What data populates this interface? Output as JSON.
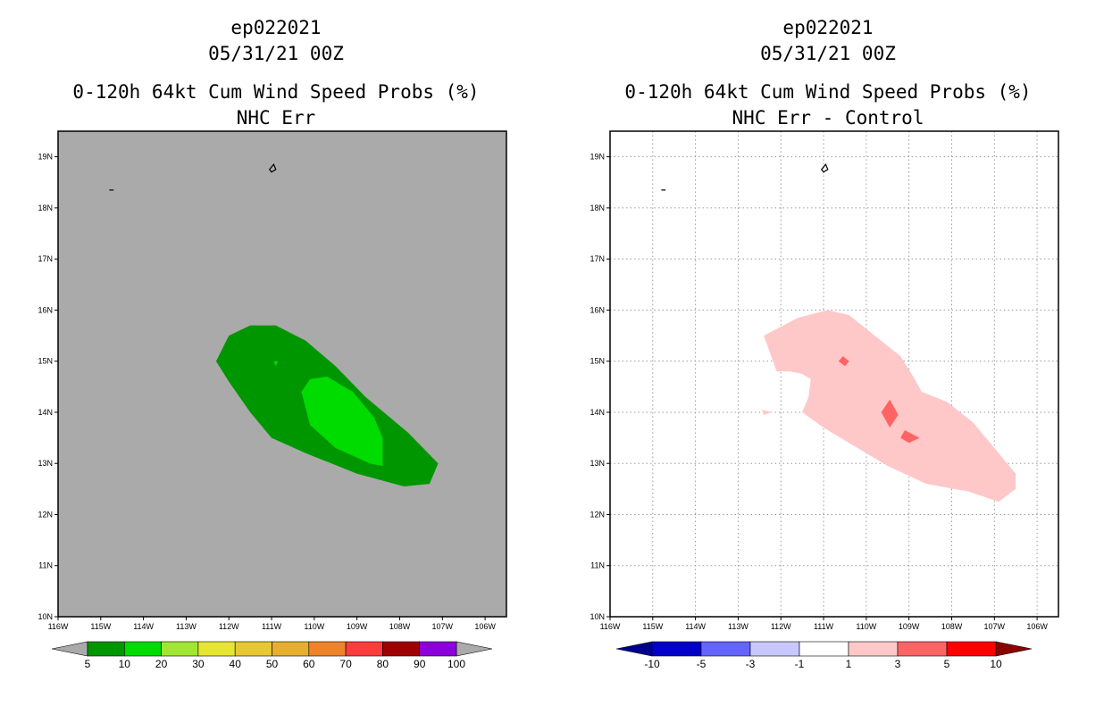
{
  "colors": {
    "background": "#ffffff",
    "left_map_bg": "#aaaaaa",
    "frame": "#000000",
    "grid": "#9a9a9a"
  },
  "chart_data": [
    {
      "type": "contour-map",
      "title_lines": [
        "ep022021",
        "05/31/21 00Z",
        "0-120h 64kt Cum Wind Speed Probs (%)",
        "NHC Err"
      ],
      "lon_range": [
        -116,
        -105.5
      ],
      "lat_range": [
        10,
        19.5
      ],
      "xtick_labels": [
        "116W",
        "115W",
        "114W",
        "113W",
        "112W",
        "111W",
        "110W",
        "109W",
        "108W",
        "107W",
        "106W"
      ],
      "xtick_values": [
        -116,
        -115,
        -114,
        -113,
        -112,
        -111,
        -110,
        -109,
        -108,
        -107,
        -106
      ],
      "ytick_labels": [
        "10N",
        "11N",
        "12N",
        "13N",
        "14N",
        "15N",
        "16N",
        "17N",
        "18N",
        "19N"
      ],
      "ytick_values": [
        10,
        11,
        12,
        13,
        14,
        15,
        16,
        17,
        18,
        19
      ],
      "grid": false,
      "colorbar": {
        "ticks": [
          "5",
          "10",
          "20",
          "30",
          "40",
          "50",
          "60",
          "70",
          "80",
          "90",
          "100"
        ],
        "colors": [
          "#009600",
          "#00dc00",
          "#a0e632",
          "#e6e632",
          "#e6c832",
          "#e6af2d",
          "#f08228",
          "#fa3c3c",
          "#a00000",
          "#8c00dc"
        ],
        "end_low": "#aaaaaa",
        "end_high": "#aaaaaa"
      },
      "contours": [
        {
          "level": "5-10",
          "color": "#009600",
          "points": [
            [
              -112.3,
              15.0
            ],
            [
              -112.0,
              15.5
            ],
            [
              -111.5,
              15.7
            ],
            [
              -110.9,
              15.7
            ],
            [
              -110.2,
              15.4
            ],
            [
              -109.5,
              14.9
            ],
            [
              -108.8,
              14.3
            ],
            [
              -107.8,
              13.6
            ],
            [
              -107.1,
              13.0
            ],
            [
              -107.3,
              12.6
            ],
            [
              -107.9,
              12.55
            ],
            [
              -109.0,
              12.8
            ],
            [
              -110.2,
              13.2
            ],
            [
              -111.0,
              13.5
            ],
            [
              -111.5,
              14.0
            ],
            [
              -112.0,
              14.6
            ]
          ]
        },
        {
          "level": "10-20",
          "color": "#00dc00",
          "points": [
            [
              -109.7,
              14.7
            ],
            [
              -109.1,
              14.4
            ],
            [
              -108.6,
              13.9
            ],
            [
              -108.4,
              13.5
            ],
            [
              -108.4,
              12.95
            ],
            [
              -108.7,
              13.0
            ],
            [
              -109.5,
              13.3
            ],
            [
              -110.1,
              13.75
            ],
            [
              -110.3,
              14.4
            ],
            [
              -110.1,
              14.65
            ]
          ]
        },
        {
          "level": "10-20 spot",
          "color": "#00dc00",
          "points": [
            [
              -110.95,
              15.0
            ],
            [
              -110.85,
              15.0
            ],
            [
              -110.9,
              14.9
            ]
          ]
        }
      ],
      "land_features": [
        {
          "name": "Clarion islet",
          "points": [
            [
              -114.8,
              18.35
            ],
            [
              -114.7,
              18.35
            ]
          ]
        },
        {
          "name": "Socorro island",
          "points": [
            [
              -111.05,
              18.75
            ],
            [
              -110.95,
              18.85
            ],
            [
              -110.9,
              18.75
            ],
            [
              -111.0,
              18.7
            ]
          ]
        }
      ]
    },
    {
      "type": "contour-map",
      "title_lines": [
        "ep022021",
        "05/31/21 00Z",
        "0-120h 64kt Cum Wind Speed Probs (%)",
        "NHC Err - Control"
      ],
      "lon_range": [
        -116,
        -105.5
      ],
      "lat_range": [
        10,
        19.5
      ],
      "xtick_labels": [
        "116W",
        "115W",
        "114W",
        "113W",
        "112W",
        "111W",
        "110W",
        "109W",
        "108W",
        "107W",
        "106W"
      ],
      "xtick_values": [
        -116,
        -115,
        -114,
        -113,
        -112,
        -111,
        -110,
        -109,
        -108,
        -107,
        -106
      ],
      "ytick_labels": [
        "10N",
        "11N",
        "12N",
        "13N",
        "14N",
        "15N",
        "16N",
        "17N",
        "18N",
        "19N"
      ],
      "ytick_values": [
        10,
        11,
        12,
        13,
        14,
        15,
        16,
        17,
        18,
        19
      ],
      "grid": true,
      "colorbar": {
        "ticks": [
          "-10",
          "-5",
          "-3",
          "-1",
          "1",
          "3",
          "5",
          "10"
        ],
        "colors": [
          "#0000c8",
          "#6464ff",
          "#c8c8ff",
          "#ffffff",
          "#ffc8c8",
          "#ff6464",
          "#ff0000"
        ],
        "end_low": "#00008c",
        "end_high": "#8c0000"
      },
      "contours": [
        {
          "level": "1-3",
          "color": "#ffc8c8",
          "points": [
            [
              -112.4,
              15.5
            ],
            [
              -111.6,
              15.85
            ],
            [
              -110.9,
              16.0
            ],
            [
              -110.4,
              15.9
            ],
            [
              -109.8,
              15.5
            ],
            [
              -109.2,
              15.1
            ],
            [
              -108.9,
              14.7
            ],
            [
              -108.7,
              14.4
            ],
            [
              -108.1,
              14.2
            ],
            [
              -107.5,
              13.8
            ],
            [
              -107.0,
              13.3
            ],
            [
              -106.5,
              12.8
            ],
            [
              -106.5,
              12.5
            ],
            [
              -106.9,
              12.25
            ],
            [
              -107.6,
              12.45
            ],
            [
              -108.6,
              12.6
            ],
            [
              -109.5,
              12.95
            ],
            [
              -110.3,
              13.35
            ],
            [
              -111.0,
              13.7
            ],
            [
              -111.5,
              14.0
            ],
            [
              -111.35,
              14.3
            ],
            [
              -111.3,
              14.65
            ],
            [
              -111.5,
              14.75
            ],
            [
              -111.8,
              14.8
            ],
            [
              -112.1,
              14.8
            ]
          ]
        },
        {
          "level": "1-3 spot",
          "color": "#ffc8c8",
          "points": [
            [
              -112.45,
              14.05
            ],
            [
              -112.2,
              14.0
            ],
            [
              -112.4,
              13.95
            ]
          ]
        },
        {
          "level": "3-5",
          "color": "#ff6464",
          "points": [
            [
              -110.55,
              15.1
            ],
            [
              -110.4,
              15.0
            ],
            [
              -110.5,
              14.9
            ],
            [
              -110.65,
              15.0
            ]
          ]
        },
        {
          "level": "3-5",
          "color": "#ff6464",
          "points": [
            [
              -109.45,
              14.25
            ],
            [
              -109.25,
              13.95
            ],
            [
              -109.45,
              13.7
            ],
            [
              -109.65,
              14.0
            ]
          ]
        },
        {
          "level": "3-5",
          "color": "#ff6464",
          "points": [
            [
              -109.1,
              13.65
            ],
            [
              -108.75,
              13.5
            ],
            [
              -109.0,
              13.4
            ],
            [
              -109.2,
              13.5
            ]
          ]
        }
      ],
      "land_features": [
        {
          "name": "Clarion islet",
          "points": [
            [
              -114.8,
              18.35
            ],
            [
              -114.7,
              18.35
            ]
          ]
        },
        {
          "name": "Socorro island",
          "points": [
            [
              -111.05,
              18.75
            ],
            [
              -110.95,
              18.85
            ],
            [
              -110.9,
              18.75
            ],
            [
              -111.0,
              18.7
            ]
          ]
        }
      ]
    }
  ]
}
